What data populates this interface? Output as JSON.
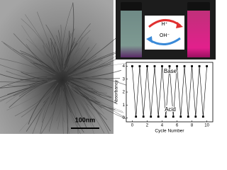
{
  "scale_bar": "100nm",
  "reaction": {
    "forward": "H⁺",
    "backward": "OH⁻"
  },
  "chart_data": {
    "type": "line",
    "xlabel": "Cycle Number",
    "ylabel": "Absorbancy",
    "annotations": [
      "Base",
      "Acid"
    ],
    "x": [
      0,
      0.5,
      1,
      1.5,
      2,
      2.5,
      3,
      3.5,
      4,
      4.5,
      5,
      5.5,
      6,
      6.5,
      7,
      7.5,
      8,
      8.5,
      9,
      9.5,
      10
    ],
    "series": [
      {
        "color": "#000000",
        "values": [
          4.0,
          0.1,
          4.0,
          0.1,
          4.0,
          0.1,
          4.0,
          0.1,
          4.0,
          0.1,
          4.0,
          0.1,
          4.0,
          0.1,
          4.0,
          0.1,
          4.0,
          0.1,
          4.0,
          0.1,
          4.0
        ]
      }
    ],
    "xlim": [
      -0.8,
      10.8
    ],
    "xticks": [
      0,
      2,
      4,
      6,
      8,
      10
    ],
    "ylim": [
      -0.3,
      4.3
    ],
    "yticks": [
      0,
      1,
      2,
      3,
      4
    ]
  }
}
